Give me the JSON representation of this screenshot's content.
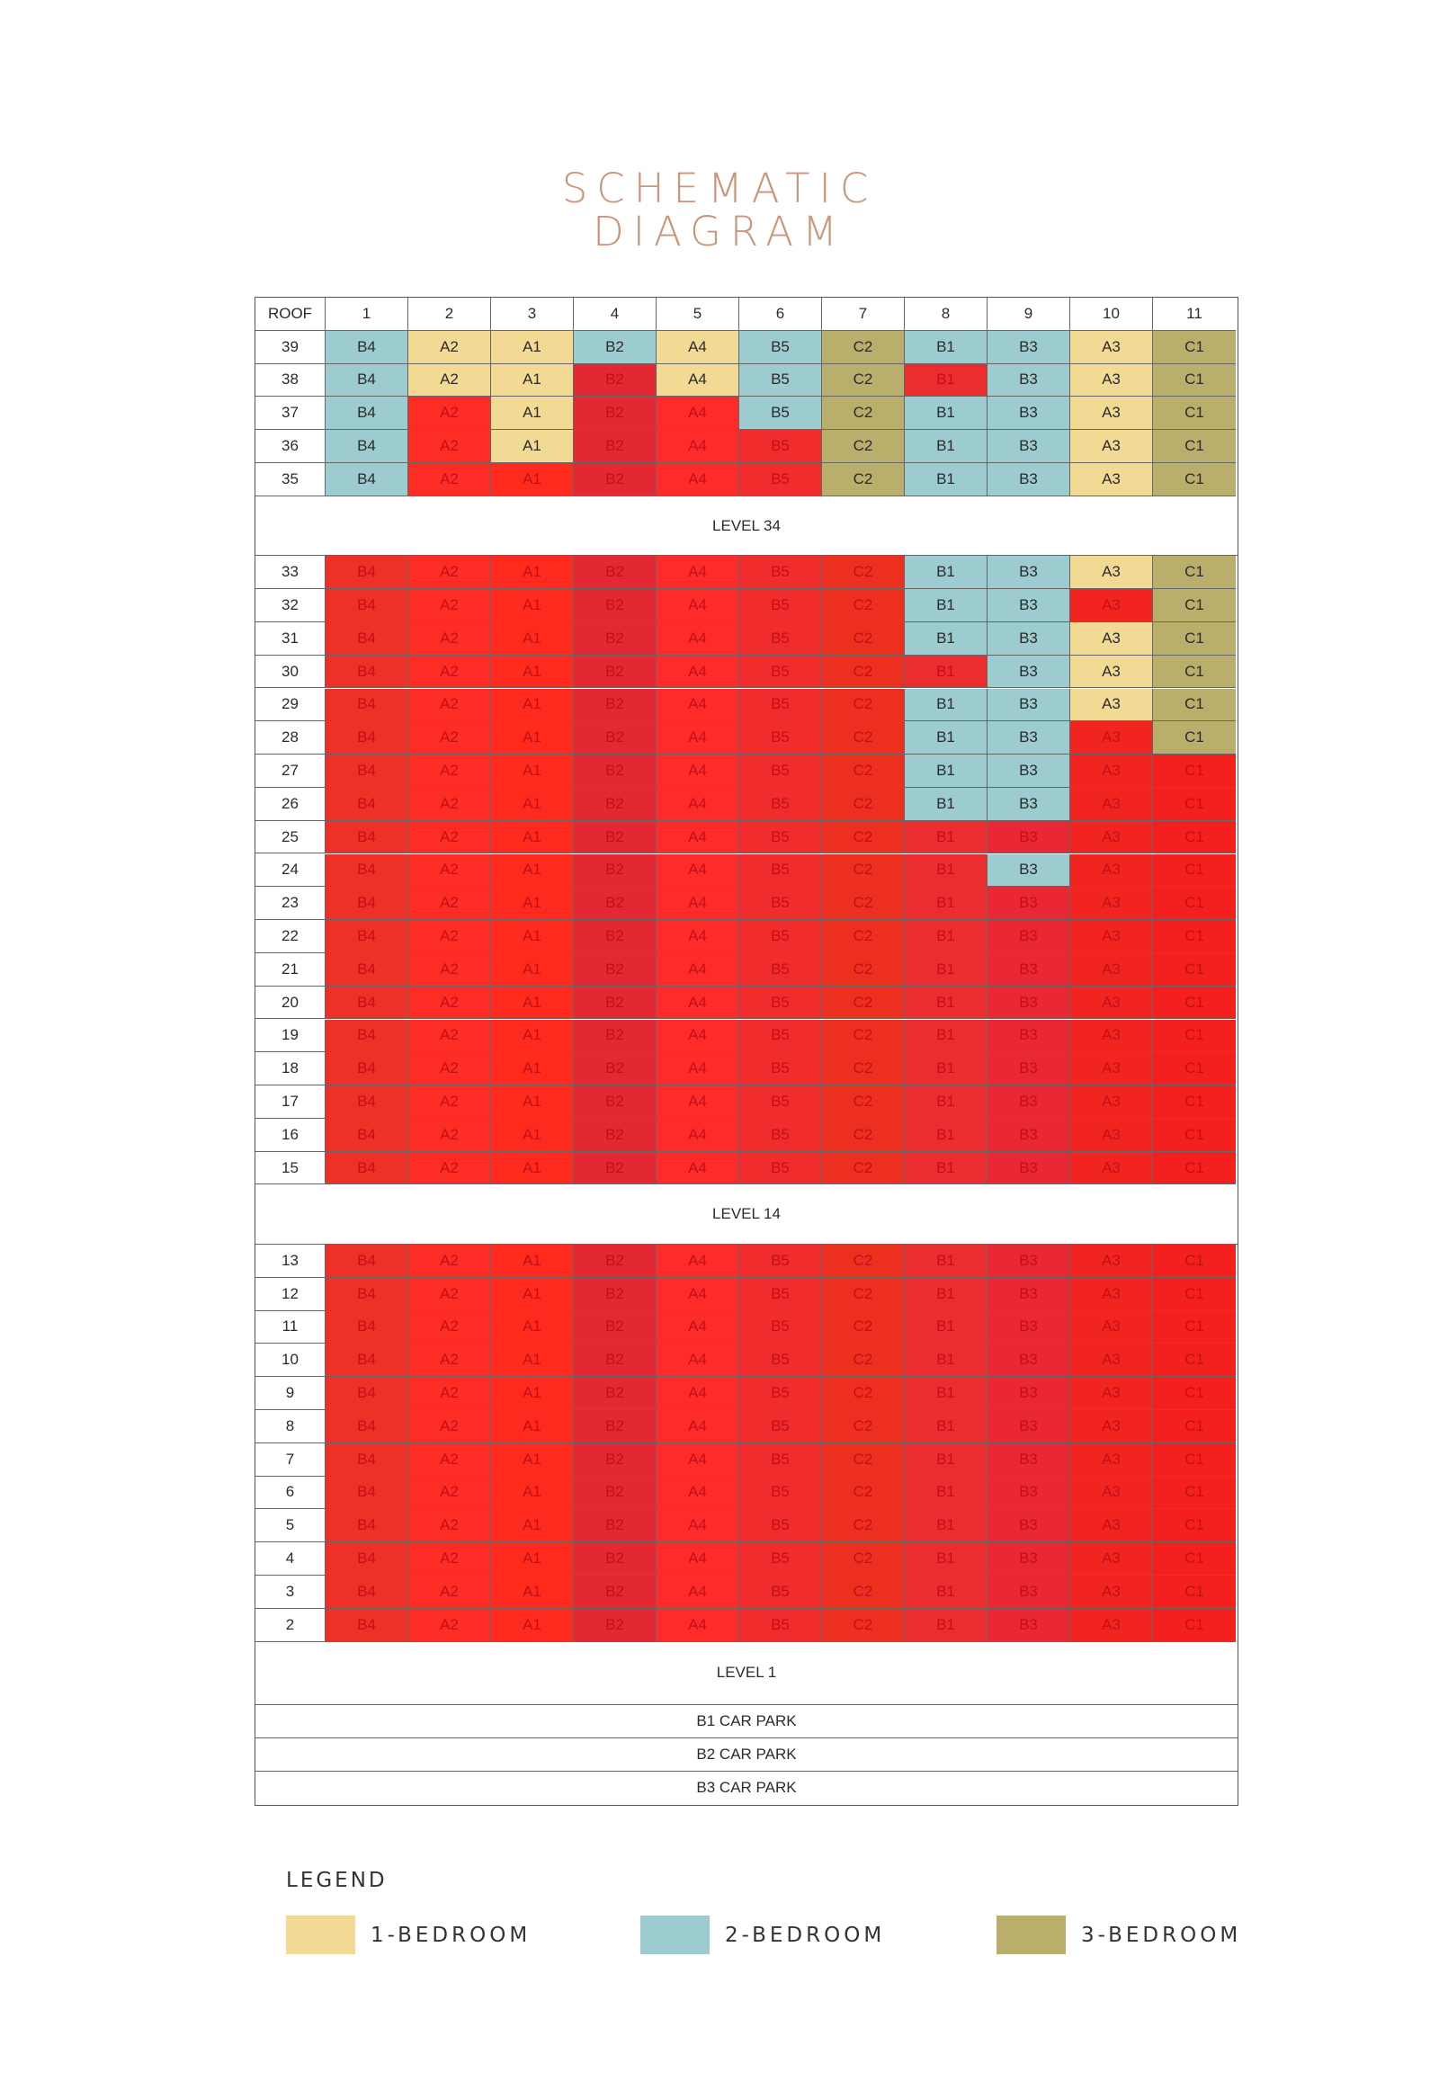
{
  "title_line1": "SCHEMATIC",
  "title_line2": "DIAGRAM",
  "header": {
    "roof_label": "ROOF",
    "stacks": [
      "1",
      "2",
      "3",
      "4",
      "5",
      "6",
      "7",
      "8",
      "9",
      "10",
      "11"
    ]
  },
  "unit_types": [
    "B4",
    "A2",
    "A1",
    "B2",
    "A4",
    "B5",
    "C2",
    "B1",
    "B3",
    "A3",
    "C1"
  ],
  "colors": {
    "1-bedroom": "#f2da94",
    "2-bedroom": "#9ccbd0",
    "3-bedroom": "#b9ae6c",
    "sold_stack": [
      "#ee3126",
      "#fd2c24",
      "#fe2a1d",
      "#e32833",
      "#fd2c2a",
      "#f12c2d",
      "#ed2f1f",
      "#eb2d2f",
      "#ea2734",
      "#f2241f",
      "#f4201d"
    ]
  },
  "sections": [
    {
      "floors": [
        39,
        38,
        37,
        36,
        35
      ],
      "band": "LEVEL 34"
    },
    {
      "floors": [
        33,
        32,
        31,
        30,
        29,
        28,
        27,
        26,
        25,
        24,
        23,
        22,
        21,
        20,
        19,
        18,
        17,
        16,
        15
      ],
      "band": "LEVEL 14"
    },
    {
      "floors": [
        13,
        12,
        11,
        10,
        9,
        8,
        7,
        6,
        5,
        4,
        3,
        2
      ],
      "band": "LEVEL 1"
    }
  ],
  "available": {
    "39": [
      1,
      2,
      3,
      4,
      5,
      6,
      7,
      8,
      9,
      10,
      11
    ],
    "38": [
      1,
      2,
      3,
      5,
      6,
      7,
      9,
      10,
      11
    ],
    "37": [
      1,
      3,
      6,
      7,
      8,
      9,
      10,
      11
    ],
    "36": [
      1,
      3,
      7,
      8,
      9,
      10,
      11
    ],
    "35": [
      1,
      7,
      8,
      9,
      10,
      11
    ],
    "33": [
      8,
      9,
      10,
      11
    ],
    "32": [
      8,
      9,
      11
    ],
    "31": [
      8,
      9,
      10,
      11
    ],
    "30": [
      9,
      10,
      11
    ],
    "29": [
      8,
      9,
      10,
      11
    ],
    "28": [
      8,
      9,
      11
    ],
    "27": [
      8,
      9
    ],
    "26": [
      8,
      9
    ],
    "24": [
      9
    ]
  },
  "car_parks": [
    "B1 CAR PARK",
    "B2 CAR PARK",
    "B3 CAR PARK"
  ],
  "legend": {
    "title": "LEGEND",
    "items": [
      {
        "label": "1-BEDROOM",
        "color": "#f2da94"
      },
      {
        "label": "2-BEDROOM",
        "color": "#9ccbd0"
      },
      {
        "label": "3-BEDROOM",
        "color": "#b9ae6c"
      }
    ]
  }
}
